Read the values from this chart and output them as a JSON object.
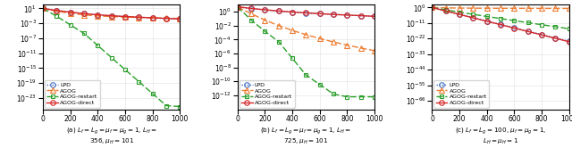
{
  "xlim": [
    0,
    1000
  ],
  "xticks": [
    0,
    200,
    400,
    600,
    800,
    1000
  ],
  "legend_order": [
    "LPD",
    "AGOG",
    "AGOG-restart",
    "AGOG-direct"
  ],
  "subplots": [
    {
      "yticks_log": [
        1,
        -3,
        -7,
        -11,
        -15,
        -19,
        -23
      ],
      "ylim_log": [
        -26,
        2
      ],
      "caption": "(a) $L_f = L_g = \\mu_f = \\mu_g = 1$, $L_H =$\n$356, \\mu_H = 101$",
      "data": {
        "LPD": [
          10.0,
          2.5,
          0.9,
          0.38,
          0.18,
          0.1,
          0.062,
          0.042,
          0.028,
          0.02,
          0.014
        ],
        "AGOG": [
          10.0,
          1.8,
          0.5,
          0.18,
          0.1,
          0.065,
          0.048,
          0.038,
          0.03,
          0.024,
          0.02
        ],
        "AGOG-restart": [
          10.0,
          0.08,
          0.0004,
          2e-06,
          1.2e-09,
          7e-13,
          4e-16,
          2.5e-19,
          1.5e-22,
          9e-26,
          5e-26
        ],
        "AGOG-direct": [
          10.0,
          2.8,
          1.0,
          0.42,
          0.2,
          0.11,
          0.068,
          0.045,
          0.03,
          0.021,
          0.015
        ]
      }
    },
    {
      "yticks_log": [
        0,
        -2,
        -4,
        -6,
        -8,
        -10,
        -12
      ],
      "ylim_log": [
        -14,
        1
      ],
      "caption": "(b) $L_f = L_g = \\mu_f = \\mu_g = 1$, $L_H =$\n$725, \\mu_H = 101$",
      "data": {
        "LPD": [
          5.0,
          2.8,
          1.8,
          1.2,
          0.85,
          0.65,
          0.5,
          0.4,
          0.32,
          0.26,
          0.21
        ],
        "AGOG": [
          5.0,
          0.5,
          0.062,
          0.01,
          0.002,
          0.0005,
          0.00014,
          4.5e-05,
          1.6e-05,
          6e-06,
          2.5e-06
        ],
        "AGOG-restart": [
          5.0,
          0.062,
          0.0015,
          5e-05,
          2e-07,
          8e-10,
          3.5e-11,
          1.5e-12,
          6e-13,
          6e-13,
          6e-13
        ],
        "AGOG-direct": [
          5.0,
          2.9,
          1.85,
          1.25,
          0.88,
          0.66,
          0.51,
          0.4,
          0.325,
          0.265,
          0.215
        ]
      }
    },
    {
      "yticks_log": [
        0,
        -11,
        -22,
        -33,
        -44,
        -55,
        -66
      ],
      "ylim_log": [
        -72,
        2
      ],
      "caption": "(c) $L_f = L_g = 100$, $\\mu_f = \\mu_g = 1$,\n$L_H = \\mu_H = 1$",
      "data": {
        "LPD": [
          1.0,
          0.0035,
          1.5e-05,
          6e-08,
          2.5e-10,
          1e-12,
          4e-15,
          1.8e-17,
          7e-20,
          3e-22,
          1.2e-24
        ],
        "AGOG": [
          1.0,
          0.55,
          0.4,
          0.33,
          0.29,
          0.27,
          0.255,
          0.245,
          0.235,
          0.228,
          0.222
        ],
        "AGOG-restart": [
          1.0,
          0.022,
          0.0005,
          1.4e-05,
          4.5e-07,
          1.5e-08,
          5e-10,
          1.8e-11,
          6.5e-13,
          2.5e-14,
          9e-16
        ],
        "AGOG-direct": [
          1.0,
          0.0032,
          1.2e-05,
          4.5e-08,
          1.8e-10,
          7e-13,
          2.5e-15,
          1e-17,
          3.8e-20,
          1.5e-22,
          5.8e-25
        ]
      }
    }
  ]
}
